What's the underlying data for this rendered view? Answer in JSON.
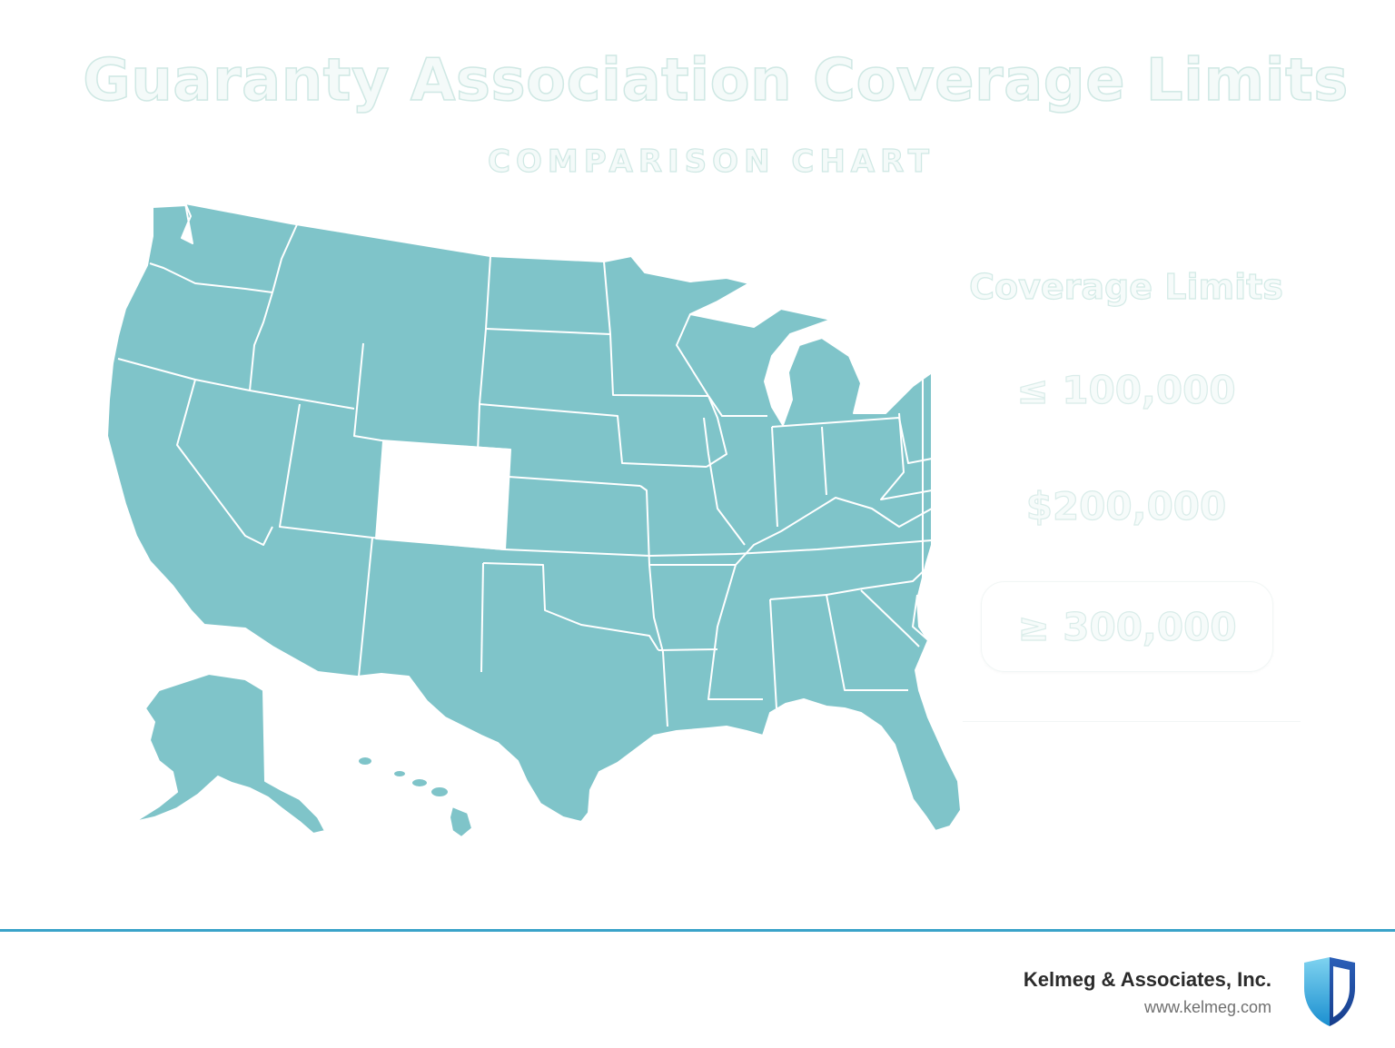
{
  "header": {
    "title": "Guaranty Association Coverage Limits",
    "subtitle": "COMPARISON CHART"
  },
  "map": {
    "default_state_color": "#7fc4c9",
    "highlight_color": "#ffffff",
    "highlighted_state": "Colorado",
    "border_color": "#ffffff"
  },
  "legend": {
    "title": "Coverage Limits",
    "items": [
      {
        "label": "≤ 100,000"
      },
      {
        "label": "$200,000"
      },
      {
        "label": "≥ 300,000"
      }
    ]
  },
  "footer": {
    "company": "Kelmeg & Associates, Inc.",
    "website": "www.kelmeg.com",
    "accent_color": "#3aa3c9",
    "logo_icon": "shield-icon"
  }
}
